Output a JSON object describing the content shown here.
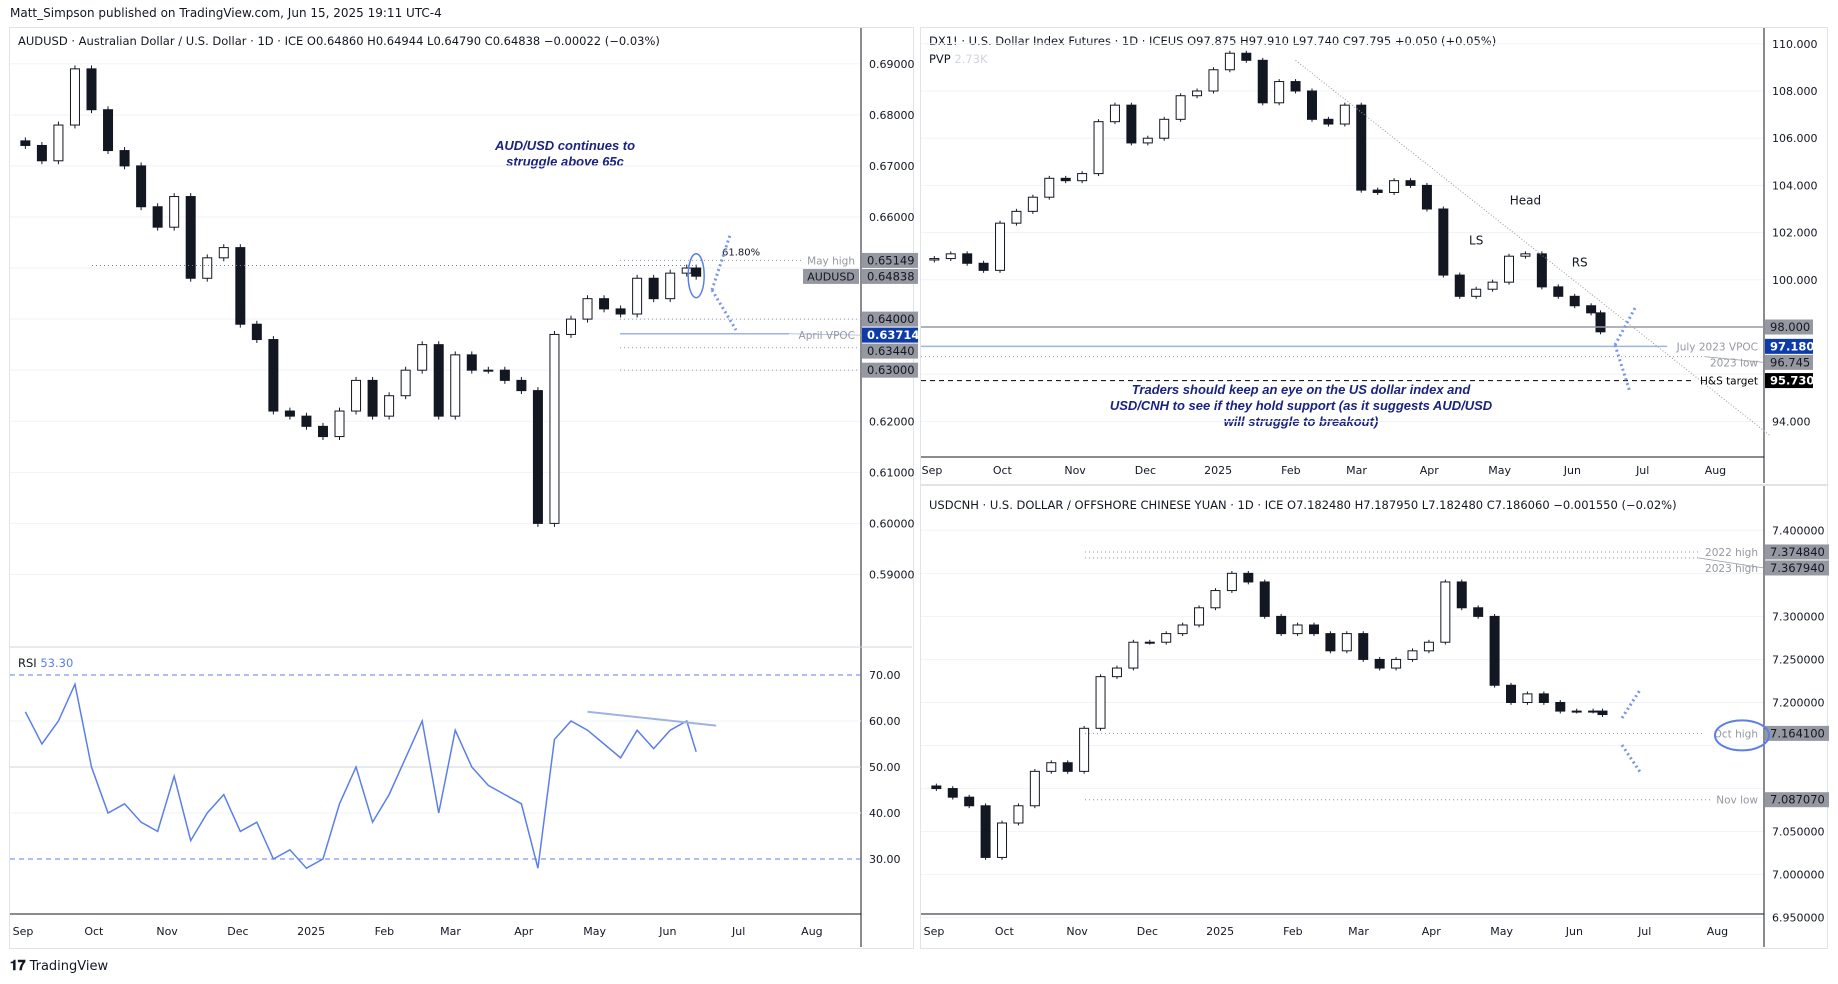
{
  "header": {
    "published": "Matt_Simpson published on TradingView.com, Jun 15, 2025 19:11 UTC-4"
  },
  "footer": {
    "brand": "TradingView"
  },
  "colors": {
    "up": "#131722",
    "down": "#131722",
    "rsi": "#5b7fe8",
    "vpoc": "#0d3ba8",
    "label_bg": "#9598a1",
    "note": "#1a237e",
    "hs": "#000000"
  },
  "time_axis": [
    "Sep",
    "Oct",
    "Nov",
    "Dec",
    "2025",
    "Feb",
    "Mar",
    "Apr",
    "May",
    "Jun",
    "Jul",
    "Aug"
  ],
  "audusd": {
    "legend": "AUDUSD · Australian Dollar / U.S. Dollar · 1D · ICE  O0.64860  H0.64944  L0.64790  C0.64838  −0.00022 (−0.03%)",
    "note": "AUD/USD continues to struggle above 65c",
    "fib_label": "61.80%",
    "levels": [
      {
        "label": "May high",
        "value": "0.65149",
        "style": "dotted",
        "kind": "gray"
      },
      {
        "label": "AUDUSD",
        "value": "0.64838",
        "style": "none",
        "kind": "gray"
      },
      {
        "label": "",
        "value": "0.64000",
        "style": "dotted",
        "kind": "gray"
      },
      {
        "label": "April VPOC",
        "value": "0.63714",
        "style": "solid",
        "kind": "blue"
      },
      {
        "label": "",
        "value": "0.63440",
        "style": "dotted",
        "kind": "gray"
      },
      {
        "label": "",
        "value": "0.63000",
        "style": "dotted",
        "kind": "gray"
      }
    ],
    "rsi_label": "RSI",
    "rsi_value": "53.30"
  },
  "dxy": {
    "legend": "DX1! · U.S. Dollar Index Futures · 1D · ICEUS  O97.875  H97.910  L97.740  C97.795  +0.050 (+0.05%)",
    "pvp_label": "PVP",
    "pvp_value": "2.73K",
    "pattern": {
      "ls": "LS",
      "head": "Head",
      "rs": "RS"
    },
    "note": "Traders should keep an eye on the US dollar index and USD/CNH to see if they hold support (as it suggests AUD/USD will struggle to breakout)",
    "levels": [
      {
        "label": "",
        "value": "98.000",
        "style": "solid",
        "kind": "gray"
      },
      {
        "label": "July 2023 VPOC",
        "value": "97.180",
        "style": "solid",
        "kind": "blue"
      },
      {
        "label": "2023 low",
        "value": "96.745",
        "style": "dotted",
        "kind": "gray"
      },
      {
        "label": "H&S target",
        "value": "95.730",
        "style": "dashed",
        "kind": "black"
      }
    ]
  },
  "usdcnh": {
    "legend": "USDCNH · U.S. DOLLAR / OFFSHORE CHINESE YUAN · 1D · ICE  O7.182480  H7.187950  L7.182480  C7.186060  −0.001550 (−0.02%)",
    "levels": [
      {
        "label": "2022 high",
        "value": "7.374840",
        "style": "dotted",
        "kind": "gray"
      },
      {
        "label": "2023 high",
        "value": "7.367940",
        "style": "dotted",
        "kind": "gray"
      },
      {
        "label": "Oct high",
        "value": "7.164100",
        "style": "dotted",
        "kind": "gray"
      },
      {
        "label": "Nov low",
        "value": "7.087070",
        "style": "dotted",
        "kind": "gray"
      }
    ]
  },
  "chart_data": [
    {
      "type": "candlestick",
      "name": "AUDUSD",
      "ylim": [
        0.585,
        0.697
      ],
      "yticks": [
        0.59,
        0.6,
        0.61,
        0.62,
        0.63,
        0.64,
        0.65,
        0.66,
        0.67,
        0.68,
        0.69
      ],
      "x": [
        "2024-09-02",
        "2024-09-09",
        "2024-09-16",
        "2024-09-23",
        "2024-09-30",
        "2024-10-07",
        "2024-10-14",
        "2024-10-21",
        "2024-10-28",
        "2024-11-04",
        "2024-11-11",
        "2024-11-18",
        "2024-11-25",
        "2024-12-02",
        "2024-12-09",
        "2024-12-16",
        "2024-12-23",
        "2024-12-30",
        "2025-01-06",
        "2025-01-13",
        "2025-01-20",
        "2025-01-27",
        "2025-02-03",
        "2025-02-10",
        "2025-02-17",
        "2025-02-24",
        "2025-03-03",
        "2025-03-10",
        "2025-03-17",
        "2025-03-24",
        "2025-03-31",
        "2025-04-07",
        "2025-04-14",
        "2025-04-21",
        "2025-04-28",
        "2025-05-05",
        "2025-05-12",
        "2025-05-19",
        "2025-05-26",
        "2025-06-02",
        "2025-06-09",
        "2025-06-13"
      ],
      "close": [
        0.674,
        0.671,
        0.678,
        0.689,
        0.681,
        0.673,
        0.67,
        0.662,
        0.658,
        0.664,
        0.648,
        0.652,
        0.654,
        0.639,
        0.636,
        0.622,
        0.621,
        0.619,
        0.617,
        0.622,
        0.628,
        0.621,
        0.625,
        0.63,
        0.635,
        0.621,
        0.633,
        0.63,
        0.63,
        0.628,
        0.626,
        0.6,
        0.637,
        0.64,
        0.644,
        0.642,
        0.641,
        0.648,
        0.644,
        0.649,
        0.65,
        0.6484
      ]
    },
    {
      "type": "line",
      "name": "RSI",
      "ylim": [
        25,
        75
      ],
      "yticks": [
        30,
        40,
        50,
        60,
        70
      ],
      "values": [
        62,
        55,
        60,
        68,
        50,
        40,
        42,
        38,
        36,
        48,
        34,
        40,
        44,
        36,
        38,
        30,
        32,
        28,
        30,
        42,
        50,
        38,
        44,
        52,
        60,
        40,
        58,
        50,
        46,
        44,
        42,
        28,
        56,
        60,
        58,
        55,
        52,
        58,
        54,
        58,
        60,
        53.3
      ]
    },
    {
      "type": "candlestick",
      "name": "DX1!",
      "ylim": [
        93,
        110.5
      ],
      "yticks": [
        94,
        96,
        98,
        100,
        102,
        104,
        106,
        108,
        110
      ],
      "close": [
        100.9,
        101.1,
        100.7,
        100.4,
        102.4,
        102.9,
        103.5,
        104.3,
        104.2,
        104.5,
        106.7,
        107.4,
        105.8,
        106.0,
        106.8,
        107.8,
        108.0,
        108.9,
        109.6,
        109.3,
        107.5,
        108.4,
        108.0,
        106.8,
        106.6,
        107.4,
        103.8,
        103.7,
        104.2,
        104.0,
        103.0,
        100.2,
        99.3,
        99.6,
        99.9,
        101.0,
        101.1,
        99.7,
        99.3,
        98.9,
        98.6,
        97.795
      ]
    },
    {
      "type": "candlestick",
      "name": "USDCNH",
      "ylim": [
        6.945,
        7.405
      ],
      "yticks": [
        6.95,
        7.0,
        7.05,
        7.1,
        7.15,
        7.2,
        7.25,
        7.3,
        7.35,
        7.4
      ],
      "close": [
        7.1,
        7.09,
        7.08,
        7.02,
        7.06,
        7.08,
        7.12,
        7.13,
        7.12,
        7.17,
        7.23,
        7.24,
        7.27,
        7.27,
        7.28,
        7.29,
        7.31,
        7.33,
        7.35,
        7.34,
        7.3,
        7.28,
        7.29,
        7.28,
        7.26,
        7.28,
        7.25,
        7.24,
        7.25,
        7.26,
        7.27,
        7.34,
        7.31,
        7.3,
        7.22,
        7.2,
        7.21,
        7.2,
        7.19,
        7.19,
        7.19,
        7.186
      ]
    }
  ]
}
